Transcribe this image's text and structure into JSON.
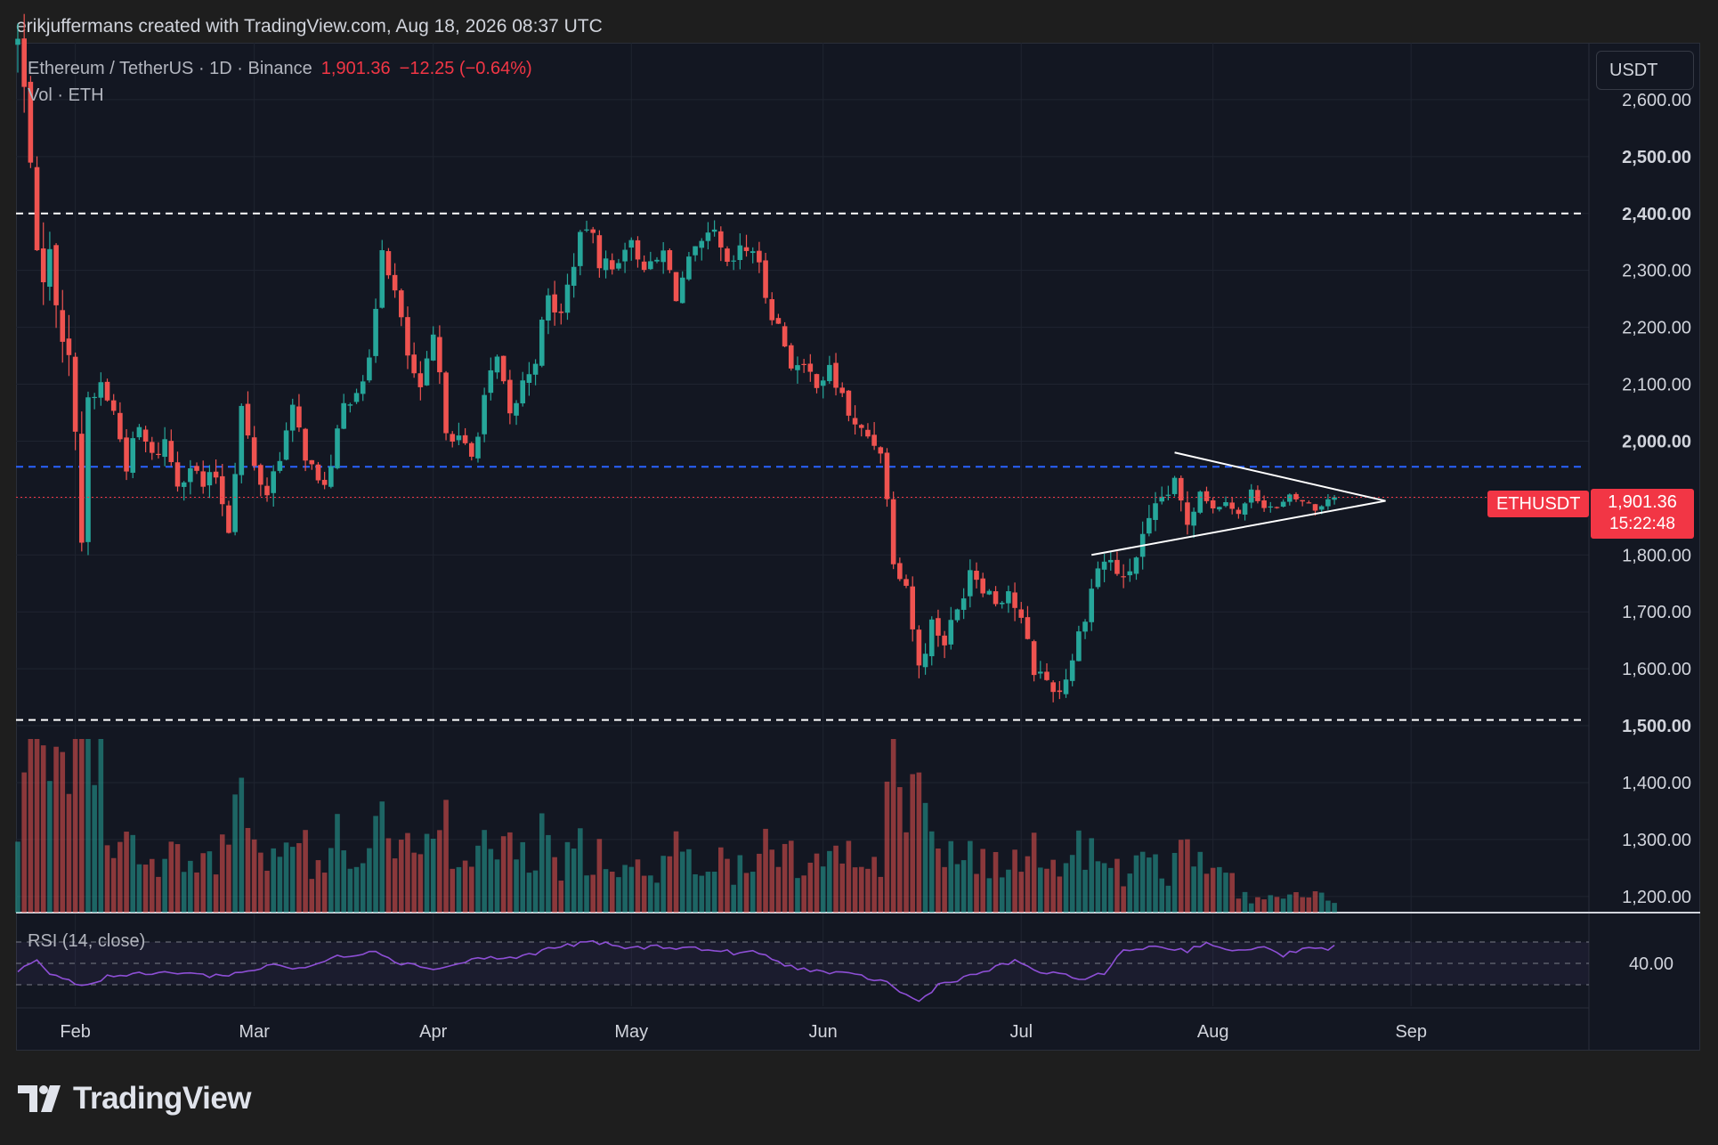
{
  "header": {
    "credit": "erikjuffermans created with TradingView.com, Aug 18, 2026 08:37 UTC"
  },
  "legend": {
    "symbol": "Ethereum / TetherUS · 1D · Binance",
    "last": "1,901.36",
    "change": "−12.25 (−0.64%)",
    "volume": "Vol · ETH",
    "rsi": "RSI (14, close)"
  },
  "currency_button": "USDT",
  "price_tag": {
    "symbol": "ETHUSDT",
    "price": "1,901.36",
    "countdown": "15:22:48"
  },
  "logo": {
    "text": "TradingView"
  },
  "colors": {
    "up": "#26a69a",
    "down": "#ef5350",
    "rsi_line": "#8e4fd6",
    "support_line": "#ffffff",
    "mid_line": "#2962ff",
    "price_line": "#f23645"
  },
  "chart_data": {
    "type": "candlestick",
    "title": "Ethereum / TetherUS · 1D · Binance",
    "x_ticks": [
      "Feb",
      "Mar",
      "Apr",
      "May",
      "Jun",
      "Jul",
      "Aug",
      "Sep"
    ],
    "y_axis": {
      "range": [
        1170,
        2700
      ],
      "ticks": [
        2600,
        2500,
        2400,
        2300,
        2200,
        2100,
        2000,
        1900,
        1800,
        1700,
        1600,
        1500,
        1400,
        1300,
        1200
      ],
      "tick_labels": [
        "2,600.00",
        "2,500.00",
        "2,400.00",
        "2,300.00",
        "2,200.00",
        "2,100.00",
        "2,000.00",
        "1,900.00",
        "1,800.00",
        "1,700.00",
        "1,600.00",
        "1,500.00",
        "1,400.00",
        "1,300.00",
        "1,200.00"
      ],
      "bold_ticks": [
        2500,
        2400,
        2000,
        1900,
        1500
      ]
    },
    "rsi_axis": {
      "tick": "40.00"
    },
    "horizontal_lines": [
      {
        "price": 2400,
        "style": "dashed",
        "color": "#ffffff"
      },
      {
        "price": 1955,
        "style": "dashed",
        "color": "#2962ff"
      },
      {
        "price": 1510,
        "style": "dashed",
        "color": "#ffffff"
      }
    ],
    "last_price": 1901.36,
    "triangle": {
      "upper": [
        {
          "day": 181,
          "price": 1980
        },
        {
          "day": 210,
          "price": 1900
        }
      ],
      "lower": [
        {
          "day": 168,
          "price": 1800
        },
        {
          "day": 210,
          "price": 1890
        }
      ]
    },
    "path": [
      [
        0,
        2700
      ],
      [
        2,
        2520
      ],
      [
        3,
        2300
      ],
      [
        5,
        2320
      ],
      [
        7,
        2200
      ],
      [
        9,
        2050
      ],
      [
        10,
        1830
      ],
      [
        11,
        2050
      ],
      [
        13,
        2100
      ],
      [
        15,
        2050
      ],
      [
        17,
        1960
      ],
      [
        19,
        2020
      ],
      [
        21,
        1970
      ],
      [
        23,
        2000
      ],
      [
        25,
        1930
      ],
      [
        27,
        1960
      ],
      [
        29,
        1920
      ],
      [
        31,
        1940
      ],
      [
        33,
        1850
      ],
      [
        35,
        2060
      ],
      [
        37,
        1950
      ],
      [
        39,
        1910
      ],
      [
        41,
        1980
      ],
      [
        43,
        2050
      ],
      [
        45,
        1980
      ],
      [
        47,
        1920
      ],
      [
        49,
        1950
      ],
      [
        51,
        2060
      ],
      [
        53,
        2100
      ],
      [
        55,
        2130
      ],
      [
        57,
        2350
      ],
      [
        59,
        2260
      ],
      [
        61,
        2150
      ],
      [
        63,
        2080
      ],
      [
        65,
        2180
      ],
      [
        67,
        2030
      ],
      [
        69,
        2000
      ],
      [
        71,
        1970
      ],
      [
        73,
        2080
      ],
      [
        75,
        2140
      ],
      [
        77,
        2040
      ],
      [
        79,
        2100
      ],
      [
        81,
        2150
      ],
      [
        83,
        2250
      ],
      [
        85,
        2220
      ],
      [
        87,
        2320
      ],
      [
        89,
        2380
      ],
      [
        91,
        2320
      ],
      [
        93,
        2300
      ],
      [
        95,
        2350
      ],
      [
        97,
        2330
      ],
      [
        99,
        2300
      ],
      [
        101,
        2330
      ],
      [
        103,
        2260
      ],
      [
        105,
        2310
      ],
      [
        107,
        2340
      ],
      [
        109,
        2360
      ],
      [
        111,
        2300
      ],
      [
        113,
        2330
      ],
      [
        115,
        2340
      ],
      [
        117,
        2260
      ],
      [
        119,
        2200
      ],
      [
        121,
        2140
      ],
      [
        123,
        2120
      ],
      [
        125,
        2110
      ],
      [
        127,
        2120
      ],
      [
        129,
        2080
      ],
      [
        131,
        2020
      ],
      [
        133,
        2010
      ],
      [
        135,
        1990
      ],
      [
        137,
        1800
      ],
      [
        139,
        1750
      ],
      [
        141,
        1600
      ],
      [
        143,
        1680
      ],
      [
        145,
        1650
      ],
      [
        147,
        1700
      ],
      [
        149,
        1780
      ],
      [
        151,
        1750
      ],
      [
        153,
        1720
      ],
      [
        155,
        1740
      ],
      [
        157,
        1680
      ],
      [
        159,
        1600
      ],
      [
        161,
        1580
      ],
      [
        163,
        1560
      ],
      [
        165,
        1620
      ],
      [
        167,
        1700
      ],
      [
        169,
        1780
      ],
      [
        171,
        1790
      ],
      [
        173,
        1750
      ],
      [
        175,
        1800
      ],
      [
        177,
        1850
      ],
      [
        179,
        1900
      ],
      [
        181,
        1920
      ],
      [
        183,
        1860
      ],
      [
        185,
        1920
      ],
      [
        187,
        1880
      ],
      [
        189,
        1900
      ],
      [
        191,
        1870
      ],
      [
        193,
        1910
      ],
      [
        195,
        1890
      ],
      [
        197,
        1880
      ],
      [
        199,
        1900
      ],
      [
        201,
        1895
      ],
      [
        203,
        1880
      ],
      [
        205,
        1900
      ],
      [
        206,
        1901
      ]
    ],
    "rsi_range": [
      10,
      90
    ],
    "rsi_levels": [
      70,
      50,
      30
    ],
    "rsi_path": [
      [
        0,
        42
      ],
      [
        3,
        55
      ],
      [
        5,
        40
      ],
      [
        8,
        35
      ],
      [
        10,
        28
      ],
      [
        14,
        38
      ],
      [
        20,
        40
      ],
      [
        26,
        42
      ],
      [
        30,
        38
      ],
      [
        36,
        42
      ],
      [
        40,
        50
      ],
      [
        44,
        44
      ],
      [
        50,
        56
      ],
      [
        56,
        62
      ],
      [
        60,
        50
      ],
      [
        66,
        45
      ],
      [
        72,
        55
      ],
      [
        78,
        55
      ],
      [
        84,
        65
      ],
      [
        90,
        70
      ],
      [
        96,
        64
      ],
      [
        100,
        66
      ],
      [
        106,
        64
      ],
      [
        112,
        60
      ],
      [
        116,
        60
      ],
      [
        120,
        48
      ],
      [
        126,
        42
      ],
      [
        132,
        38
      ],
      [
        136,
        32
      ],
      [
        139,
        20
      ],
      [
        141,
        14
      ],
      [
        144,
        30
      ],
      [
        150,
        40
      ],
      [
        156,
        52
      ],
      [
        160,
        42
      ],
      [
        166,
        36
      ],
      [
        170,
        40
      ],
      [
        173,
        62
      ],
      [
        178,
        66
      ],
      [
        183,
        62
      ],
      [
        186,
        70
      ],
      [
        190,
        60
      ],
      [
        194,
        66
      ],
      [
        198,
        58
      ],
      [
        202,
        64
      ],
      [
        205,
        62
      ],
      [
        206,
        66
      ]
    ]
  }
}
